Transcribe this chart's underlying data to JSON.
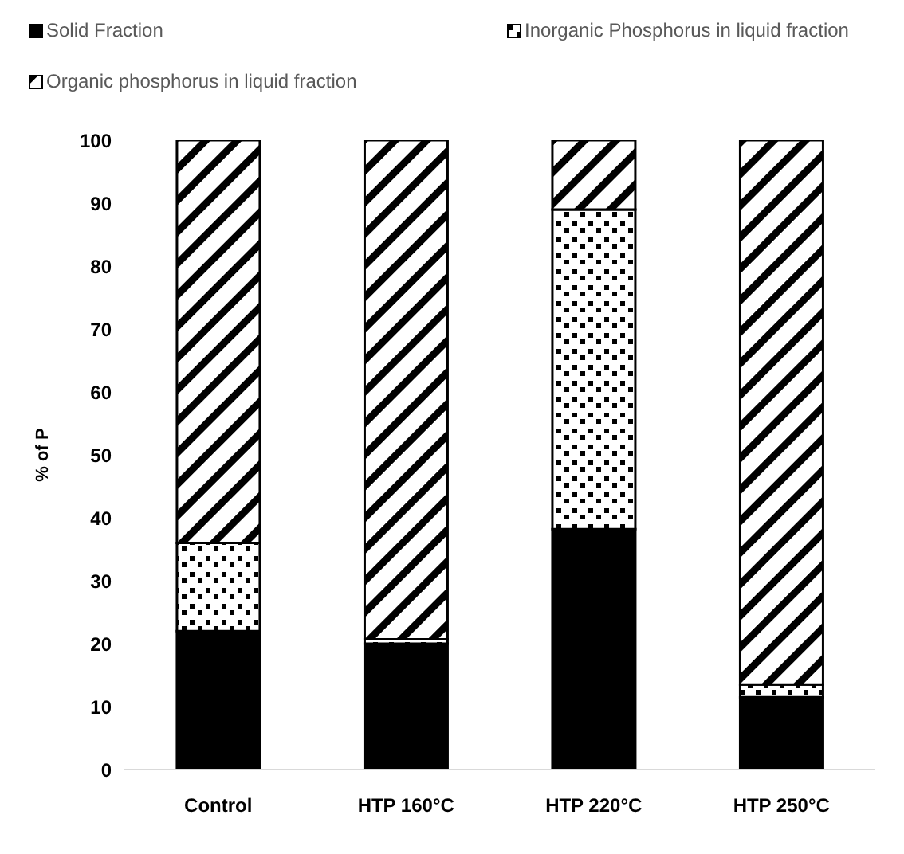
{
  "chart_data": {
    "type": "bar",
    "stacked": true,
    "categories": [
      "Control",
      "HTP 160°C",
      "HTP 220°C",
      "HTP 250°C"
    ],
    "ylabel": "% of P",
    "ylim": [
      0,
      100
    ],
    "yticks": [
      0,
      10,
      20,
      30,
      40,
      50,
      60,
      70,
      80,
      90,
      100
    ],
    "grid": false,
    "legend": "top",
    "series": [
      {
        "name": "Solid Fraction",
        "color": "#000000",
        "values": [
          22,
          20,
          38.2,
          11.5
        ]
      },
      {
        "name": "Inorganic Phosphorus in liquid fraction",
        "color": "#000000",
        "values": [
          14,
          0.7,
          50.8,
          2
        ]
      },
      {
        "name": "Organic phosphorus in liquid fraction",
        "color": "#000000",
        "values": [
          64,
          79.3,
          11,
          86.5
        ]
      }
    ]
  }
}
